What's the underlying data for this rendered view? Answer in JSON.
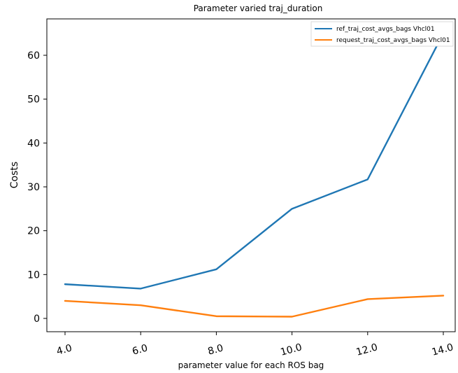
{
  "chart_data": {
    "type": "line",
    "title": "Parameter varied traj_duration",
    "xlabel": "parameter value for each ROS bag",
    "ylabel": "Costs",
    "x": [
      4.0,
      6.0,
      8.0,
      10.0,
      12.0,
      14.0
    ],
    "x_tick_labels": [
      "4.0",
      "6.0",
      "8.0",
      "10.0",
      "12.0",
      "14.0"
    ],
    "y_ticks": [
      0,
      10,
      20,
      30,
      40,
      50,
      60
    ],
    "y_tick_labels": [
      "0",
      "10",
      "20",
      "30",
      "40",
      "50",
      "60"
    ],
    "xlim": [
      3.5,
      14.0
    ],
    "ylim": [
      -2,
      68
    ],
    "grid": false,
    "legend_position": "top-right",
    "series": [
      {
        "name": "ref_traj_cost_avgs_bags Vhcl01",
        "color": "#1f77b4",
        "values": [
          7.8,
          6.8,
          11.2,
          25.0,
          31.7,
          65.0
        ]
      },
      {
        "name": "request_traj_cost_avgs_bags Vhcl01",
        "color": "#ff7f0e",
        "values": [
          4.0,
          3.0,
          0.5,
          0.4,
          4.4,
          5.2
        ]
      }
    ]
  }
}
